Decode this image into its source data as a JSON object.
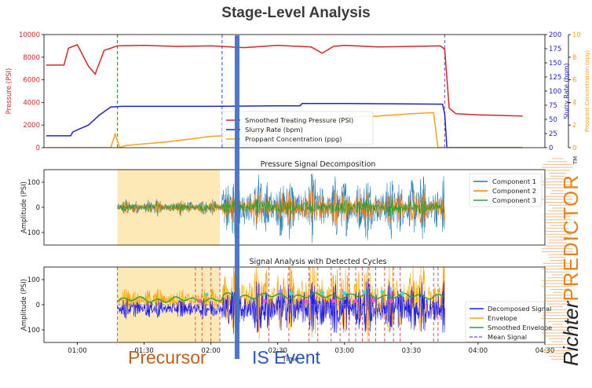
{
  "page_title": "Stage-Level Analysis",
  "captions": {
    "precursor": "Precursor",
    "event": "IS Event"
  },
  "brand": {
    "part1": "Richter",
    "part2": "PREDICTOR",
    "tm": "TM",
    "color": "#e8821e"
  },
  "chart_data": [
    {
      "type": "line",
      "title": "",
      "x_ticks": [
        "01:00",
        "01:30",
        "02:00",
        "02:30",
        "03:00",
        "03:30",
        "04:00",
        "04:30"
      ],
      "ylabel_left": "Pressure (PSI)",
      "ylabel_right1": "Slurry Rate (bpm)",
      "ylabel_right2": "Proppant Concentration (ppg)",
      "ylim_left": [
        0,
        10000
      ],
      "yticks_left": [
        "0",
        "2000",
        "4000",
        "6000",
        "8000",
        "10000"
      ],
      "ylim_right1": [
        0,
        200
      ],
      "yticks_right1": [
        "0",
        "25",
        "50",
        "75",
        "100",
        "125",
        "150",
        "175",
        "200"
      ],
      "ylim_right2": [
        0,
        10
      ],
      "yticks_right2": [
        "0",
        "2",
        "4",
        "6",
        "8",
        "10"
      ],
      "xlim": [
        "00:45",
        "04:30"
      ],
      "vlines": [
        {
          "x": "01:18",
          "color": "#2ca02c",
          "style": "dashed"
        },
        {
          "x": "02:05",
          "color": "#4169e1",
          "style": "dashed"
        },
        {
          "x": "03:45",
          "color": "#9467bd",
          "style": "dashed"
        }
      ],
      "legend": [
        "Smoothed Treating Pressure (PSI)",
        "Slurry Rate (bpm)",
        "Proppant Concentration (ppg)"
      ],
      "legend_position": "center",
      "series": [
        {
          "name": "Smoothed Treating Pressure (PSI)",
          "axis": "left",
          "color": "#d62728",
          "x": [
            "00:46",
            "00:54",
            "00:56",
            "01:00",
            "01:05",
            "01:08",
            "01:12",
            "01:18",
            "01:30",
            "01:45",
            "02:00",
            "02:15",
            "02:30",
            "02:45",
            "02:50",
            "02:55",
            "03:00",
            "03:15",
            "03:30",
            "03:43",
            "03:45",
            "03:47",
            "03:50",
            "04:00",
            "04:20"
          ],
          "y": [
            7300,
            7300,
            8800,
            9100,
            7200,
            6500,
            8600,
            9000,
            9050,
            8950,
            9000,
            8850,
            9050,
            8900,
            8350,
            8950,
            9050,
            8900,
            8950,
            9000,
            8700,
            3500,
            3000,
            2900,
            2800
          ]
        },
        {
          "name": "Slurry Rate (bpm)",
          "axis": "right1",
          "color": "#2222cc",
          "x": [
            "00:46",
            "00:57",
            "00:58",
            "01:05",
            "01:10",
            "01:15",
            "01:20",
            "02:00",
            "02:30",
            "02:40",
            "02:41",
            "03:00",
            "03:44",
            "03:45",
            "03:46",
            "04:20"
          ],
          "y": [
            21,
            21,
            28,
            40,
            58,
            72,
            73,
            73,
            74,
            74,
            78,
            78,
            77,
            60,
            0,
            0
          ]
        },
        {
          "name": "Proppant Concentration (ppg)",
          "axis": "right2",
          "color": "#ff9f1c",
          "x": [
            "00:46",
            "01:15",
            "01:17",
            "01:19",
            "01:22",
            "01:40",
            "02:00",
            "02:10",
            "02:20",
            "02:30",
            "02:45",
            "03:00",
            "03:15",
            "03:30",
            "03:40",
            "03:42",
            "04:20"
          ],
          "y": [
            0,
            0,
            1.2,
            0,
            0.2,
            0.5,
            1.0,
            1.1,
            1.3,
            1.8,
            2.4,
            2.7,
            2.8,
            3.0,
            3.1,
            0,
            0
          ]
        }
      ]
    },
    {
      "type": "line",
      "title": "Pressure Signal Decomposition",
      "ylabel": "Amplitude (PSI)",
      "ylim": [
        -150,
        150
      ],
      "yticks": [
        "-100",
        "0",
        "100"
      ],
      "xlim": [
        "00:45",
        "04:30"
      ],
      "shaded_region": {
        "x_start": "01:18",
        "x_end": "02:04",
        "color": "#fde9b6"
      },
      "legend": [
        "Component 1",
        "Component 2",
        "Component 3"
      ],
      "legend_position": "upper right",
      "series": [
        {
          "name": "Component 1",
          "color": "#1f77b4",
          "x_range": [
            "01:18",
            "03:45"
          ],
          "amplitude_before_event": 25,
          "amplitude_after_event": 95
        },
        {
          "name": "Component 2",
          "color": "#ff7f0e",
          "x_range": [
            "01:18",
            "03:45"
          ],
          "amplitude_before_event": 20,
          "amplitude_after_event": 55
        },
        {
          "name": "Component 3",
          "color": "#2ca02c",
          "x_range": [
            "01:18",
            "03:45"
          ],
          "amplitude_before_event": 12,
          "amplitude_after_event": 25
        }
      ]
    },
    {
      "type": "line",
      "title": "Signal Analysis with Detected Cycles",
      "ylabel": "Amplitude (PSI)",
      "xlabel": "Time",
      "ylim": [
        -150,
        150
      ],
      "yticks": [
        "-100",
        "0",
        "100"
      ],
      "x_ticks": [
        "01:00",
        "01:30",
        "02:00",
        "02:30",
        "03:00",
        "03:30",
        "04:00",
        "04:30"
      ],
      "xlim": [
        "00:45",
        "04:30"
      ],
      "shaded_region": {
        "x_start": "01:18",
        "x_end": "02:04",
        "color": "#fde9b6"
      },
      "legend": [
        "Decomposed Signal",
        "Envelope",
        "Smoothed Envelope",
        "Mean Signal"
      ],
      "legend_position": "lower right",
      "series": [
        {
          "name": "Decomposed Signal",
          "color": "#1a1aff",
          "amplitude_before_event": 30,
          "amplitude_after_event": 80
        },
        {
          "name": "Envelope",
          "color": "#ffa500",
          "amplitude_before_event": 35,
          "amplitude_after_event": 110
        },
        {
          "name": "Smoothed Envelope",
          "color": "#2ca02c",
          "level_before_event": 20,
          "level_after_event": 35
        },
        {
          "name": "Mean Signal",
          "color": "#9467bd",
          "level": 0
        }
      ],
      "detected_cycles_x": [
        "01:18",
        "01:53",
        "01:56",
        "02:00",
        "02:04",
        "02:26",
        "02:35",
        "02:44",
        "02:48",
        "02:54",
        "02:58",
        "03:02",
        "03:05",
        "03:08",
        "03:11",
        "03:14",
        "03:18",
        "03:22",
        "03:25",
        "03:40",
        "03:42"
      ],
      "cycle_line_color": "#e05050",
      "markers": [
        {
          "x": "01:55",
          "y": 15,
          "color": "#ff4fd8"
        },
        {
          "x": "01:58",
          "y": 40,
          "color": "#30e0d0"
        },
        {
          "x": "02:24",
          "y": 15,
          "color": "#ff4fd8"
        },
        {
          "x": "02:36",
          "y": 45,
          "color": "#30e0d0"
        },
        {
          "x": "02:43",
          "y": 12,
          "color": "#ff4fd8"
        },
        {
          "x": "02:50",
          "y": 48,
          "color": "#30e0d0"
        },
        {
          "x": "02:55",
          "y": 15,
          "color": "#ff4fd8"
        },
        {
          "x": "03:00",
          "y": 45,
          "color": "#30e0d0"
        },
        {
          "x": "03:05",
          "y": 15,
          "color": "#ff4fd8"
        },
        {
          "x": "03:09",
          "y": 50,
          "color": "#30e0d0"
        },
        {
          "x": "03:13",
          "y": 18,
          "color": "#ff4fd8"
        },
        {
          "x": "03:17",
          "y": 50,
          "color": "#30e0d0"
        },
        {
          "x": "03:21",
          "y": 15,
          "color": "#ff4fd8"
        },
        {
          "x": "03:26",
          "y": 45,
          "color": "#30e0d0"
        }
      ]
    }
  ]
}
